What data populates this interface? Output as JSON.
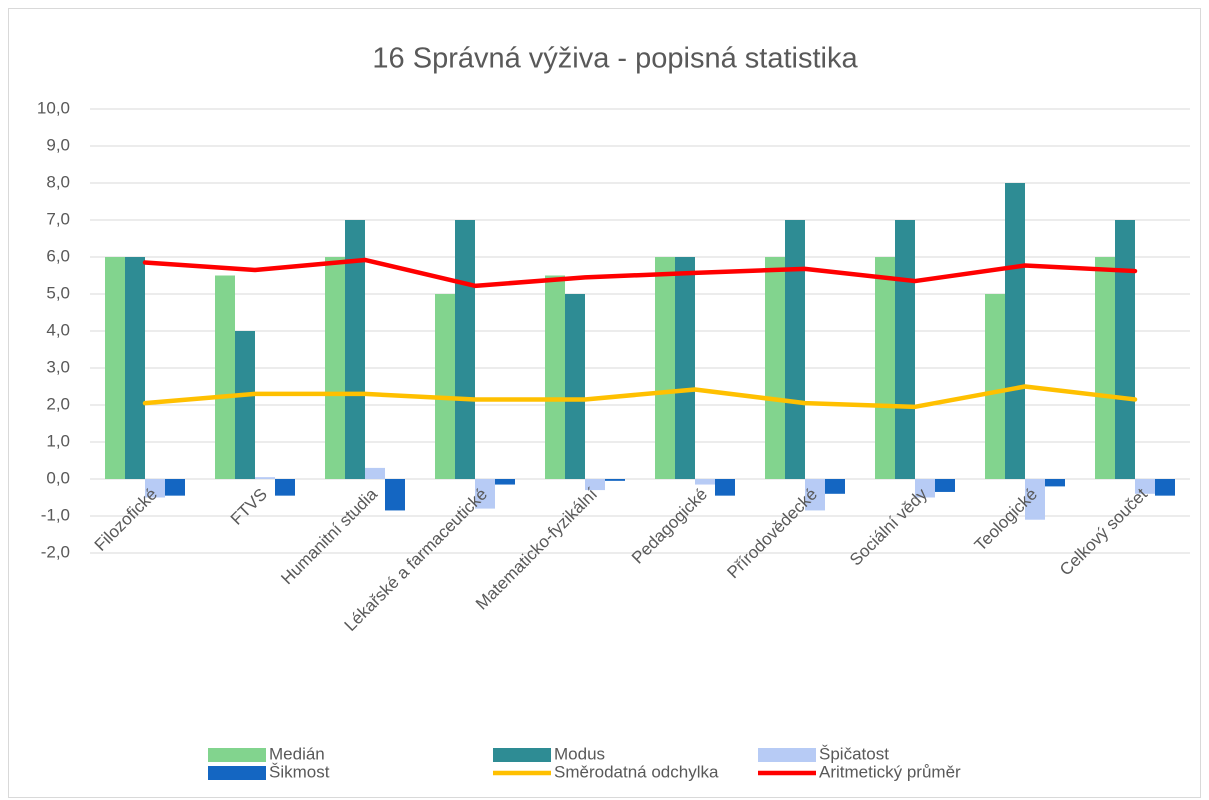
{
  "chart_data": {
    "type": "combo",
    "title": "16 Správná výživa - popisná statistika",
    "categories": [
      "Filozofické",
      "FTVS",
      "Humanitní studia",
      "Lékařské a farmaceutické",
      "Matematicko-fyzikální",
      "Pedagogické",
      "Přírodovědecké",
      "Sociální vědy",
      "Teologické",
      "Celkový součet"
    ],
    "series": [
      {
        "name": "Medián",
        "type": "bar",
        "color": "#82d48e",
        "values": [
          6,
          5.5,
          6,
          5,
          5.5,
          6,
          6,
          6,
          5,
          6
        ]
      },
      {
        "name": "Modus",
        "type": "bar",
        "color": "#2e8c94",
        "values": [
          6,
          4,
          7,
          7,
          5,
          6,
          7,
          7,
          8,
          7
        ]
      },
      {
        "name": "Špičatost",
        "type": "bar",
        "color": "#b7cbf5",
        "values": [
          -0.5,
          0.05,
          0.3,
          -0.8,
          -0.3,
          -0.15,
          -0.85,
          -0.5,
          -1.1,
          -0.4
        ]
      },
      {
        "name": "Šikmost",
        "type": "bar",
        "color": "#1466c2",
        "values": [
          -0.45,
          -0.45,
          -0.85,
          -0.15,
          -0.05,
          -0.45,
          -0.4,
          -0.35,
          -0.2,
          -0.45
        ]
      },
      {
        "name": "Směrodatná odchylka",
        "type": "line",
        "color": "#ffc000",
        "values": [
          2.05,
          2.3,
          2.3,
          2.15,
          2.15,
          2.42,
          2.05,
          1.95,
          2.5,
          2.15
        ]
      },
      {
        "name": "Aritmetický průměr",
        "type": "line",
        "color": "#ff0000",
        "values": [
          5.85,
          5.65,
          5.92,
          5.22,
          5.45,
          5.57,
          5.68,
          5.35,
          5.77,
          5.62
        ]
      }
    ],
    "ylim": [
      -2,
      10
    ],
    "yticks": [
      {
        "value": -2,
        "label": "-2,0"
      },
      {
        "value": -1,
        "label": "-1,0"
      },
      {
        "value": 0,
        "label": "0,0"
      },
      {
        "value": 1,
        "label": "1,0"
      },
      {
        "value": 2,
        "label": "2,0"
      },
      {
        "value": 3,
        "label": "3,0"
      },
      {
        "value": 4,
        "label": "4,0"
      },
      {
        "value": 5,
        "label": "5,0"
      },
      {
        "value": 6,
        "label": "6,0"
      },
      {
        "value": 7,
        "label": "7,0"
      },
      {
        "value": 8,
        "label": "8,0"
      },
      {
        "value": 9,
        "label": "9,0"
      },
      {
        "value": 10,
        "label": "10,0"
      }
    ],
    "grid": true,
    "legend": "bottom"
  }
}
